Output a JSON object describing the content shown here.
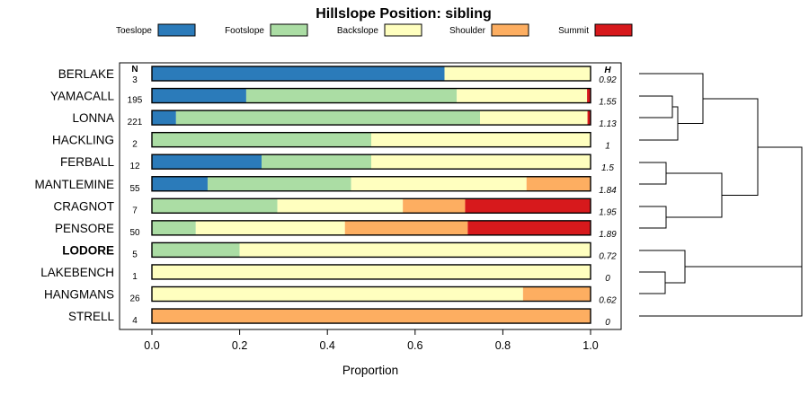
{
  "chart_data": {
    "type": "bar",
    "stacked": true,
    "orientation": "horizontal",
    "title": "Hillslope Position: sibling",
    "xlabel": "Proportion",
    "ylabel": "",
    "xlim": [
      0,
      1
    ],
    "x_ticks": [
      "0.0",
      "0.2",
      "0.4",
      "0.6",
      "0.8",
      "1.0"
    ],
    "n_header": "N",
    "h_header": "H",
    "categories_legend": [
      {
        "name": "Toeslope",
        "color": "#2b7bba"
      },
      {
        "name": "Footslope",
        "color": "#abdda4"
      },
      {
        "name": "Backslope",
        "color": "#ffffbf"
      },
      {
        "name": "Shoulder",
        "color": "#fdae61"
      },
      {
        "name": "Summit",
        "color": "#d7191c"
      }
    ],
    "rows": [
      {
        "name": "BERLAKE",
        "n": "3",
        "h": "0.92",
        "bold": false,
        "values": [
          0.667,
          0,
          0.333,
          0,
          0
        ]
      },
      {
        "name": "YAMACALL",
        "n": "195",
        "h": "1.55",
        "bold": false,
        "values": [
          0.215,
          0.48,
          0.297,
          0,
          0.008
        ]
      },
      {
        "name": "LONNA",
        "n": "221",
        "h": "1.13",
        "bold": false,
        "values": [
          0.055,
          0.693,
          0.245,
          0,
          0.007
        ]
      },
      {
        "name": "HACKLING",
        "n": "2",
        "h": "1",
        "bold": false,
        "values": [
          0,
          0.5,
          0.5,
          0,
          0
        ]
      },
      {
        "name": "FERBALL",
        "n": "12",
        "h": "1.5",
        "bold": false,
        "values": [
          0.25,
          0.25,
          0.5,
          0,
          0
        ]
      },
      {
        "name": "MANTLEMINE",
        "n": "55",
        "h": "1.84",
        "bold": false,
        "values": [
          0.127,
          0.327,
          0.4,
          0.146,
          0
        ]
      },
      {
        "name": "CRAGNOT",
        "n": "7",
        "h": "1.95",
        "bold": false,
        "values": [
          0,
          0.286,
          0.286,
          0.142,
          0.286
        ]
      },
      {
        "name": "PENSORE",
        "n": "50",
        "h": "1.89",
        "bold": false,
        "values": [
          0,
          0.1,
          0.34,
          0.28,
          0.28
        ]
      },
      {
        "name": "LODORE",
        "n": "5",
        "h": "0.72",
        "bold": true,
        "values": [
          0,
          0.2,
          0.8,
          0,
          0
        ]
      },
      {
        "name": "LAKEBENCH",
        "n": "1",
        "h": "0",
        "bold": false,
        "values": [
          0,
          0,
          1,
          0,
          0
        ]
      },
      {
        "name": "HANGMANS",
        "n": "26",
        "h": "0.62",
        "bold": false,
        "values": [
          0,
          0,
          0.846,
          0.154,
          0
        ]
      },
      {
        "name": "STRELL",
        "n": "4",
        "h": "0",
        "bold": false,
        "values": [
          0,
          0,
          0,
          1,
          0
        ]
      }
    ]
  }
}
